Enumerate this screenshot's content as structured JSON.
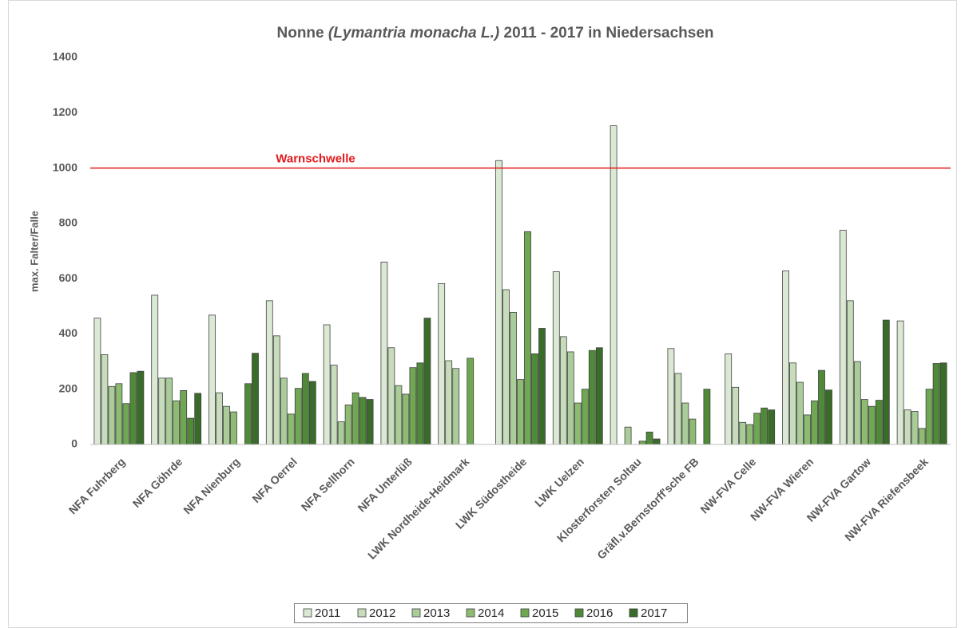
{
  "chart_data": {
    "type": "bar",
    "title": [
      "Nonne",
      "(Lymantria monacha L.)",
      "2011 - 2017 in Niedersachsen"
    ],
    "y_label": "max. Falter/Falle",
    "categories": [
      "NFA Fuhrberg",
      "NFA Göhrde",
      "NFA Nienburg",
      "NFA Oerrel",
      "NFA Sellhorn",
      "NFA Unterlüß",
      "LWK Nordheide-Heidmark",
      "LWK Südostheide",
      "LWK Uelzen",
      "Klosterforsten Soltau",
      "Gräfl.v.Bernstorff'sche FB",
      "NW-FVA  Celle",
      "NW-FVA Wieren",
      "NW-FVA Gartow",
      "NW-FVA Riefensbeek"
    ],
    "series": [
      {
        "name": "2011",
        "color": "#dbe9d4",
        "values": [
          457,
          540,
          468,
          520,
          433,
          660,
          582,
          1027,
          625,
          1153,
          347,
          328,
          628,
          775,
          447
        ]
      },
      {
        "name": "2012",
        "color": "#c6dcba",
        "values": [
          325,
          240,
          187,
          393,
          287,
          350,
          303,
          560,
          390,
          null,
          257,
          207,
          295,
          520,
          125
        ]
      },
      {
        "name": "2013",
        "color": "#a9cc98",
        "values": [
          210,
          240,
          138,
          240,
          82,
          213,
          275,
          478,
          335,
          63,
          150,
          80,
          225,
          300,
          120
        ]
      },
      {
        "name": "2014",
        "color": "#8dbb72",
        "values": [
          220,
          158,
          118,
          110,
          143,
          182,
          null,
          235,
          150,
          null,
          92,
          72,
          107,
          163,
          58
        ]
      },
      {
        "name": "2015",
        "color": "#6fa753",
        "values": [
          148,
          195,
          null,
          203,
          187,
          278,
          312,
          770,
          200,
          12,
          null,
          113,
          158,
          138,
          200
        ]
      },
      {
        "name": "2016",
        "color": "#4f8a38",
        "values": [
          260,
          95,
          220,
          257,
          170,
          295,
          null,
          328,
          340,
          45,
          200,
          132,
          268,
          160,
          293
        ]
      },
      {
        "name": "2017",
        "color": "#3a6c29",
        "values": [
          265,
          185,
          330,
          228,
          163,
          457,
          null,
          420,
          350,
          20,
          null,
          125,
          197,
          450,
          295
        ]
      }
    ],
    "ylim": [
      0,
      1400
    ],
    "yticks": [
      0,
      200,
      400,
      600,
      800,
      1000,
      1200,
      1400
    ],
    "threshold": {
      "value": 1000,
      "label": "Warnschwelle",
      "color": "#e31a1c"
    },
    "grid": false,
    "legend": "bottom"
  }
}
